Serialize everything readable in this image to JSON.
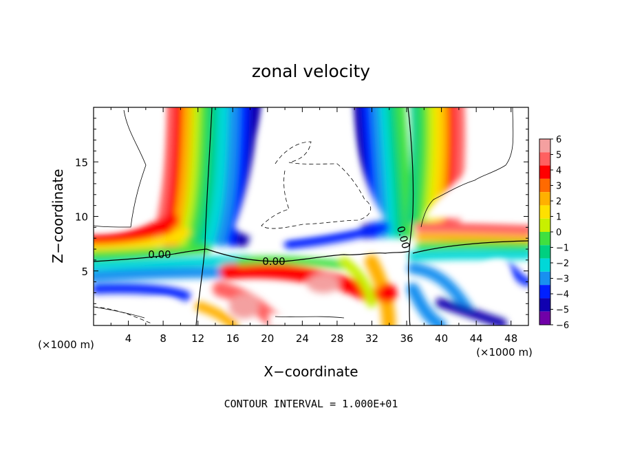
{
  "chart_data": {
    "type": "heatmap",
    "title": "zonal velocity",
    "xlabel": "X−coordinate",
    "ylabel": "Z−coordinate",
    "x_unit": "(×1000 m)",
    "x_unit_right": "(×1000 m)",
    "xlim": [
      0,
      50
    ],
    "ylim": [
      0,
      20
    ],
    "x_ticks": [
      4,
      8,
      12,
      16,
      20,
      24,
      28,
      32,
      36,
      40,
      44,
      48
    ],
    "y_ticks": [
      5,
      10,
      15
    ],
    "contour_labels": [
      "0.00",
      "0.00",
      "0.00"
    ],
    "footer": "CONTOUR INTERVAL = 1.000E+01",
    "colorbar": {
      "min": -6,
      "max": 6,
      "ticks": [
        "6",
        "5",
        "4",
        "3",
        "2",
        "1",
        "0",
        "−1",
        "−2",
        "−3",
        "−4",
        "−5",
        "−6"
      ],
      "colors": [
        "#f4a0a0",
        "#ff6060",
        "#ff0000",
        "#ff6a00",
        "#ffb000",
        "#ffe000",
        "#c8f000",
        "#40e040",
        "#00d080",
        "#00d8d8",
        "#1890f0",
        "#0020ff",
        "#1000b0",
        "#7000a8"
      ]
    }
  }
}
